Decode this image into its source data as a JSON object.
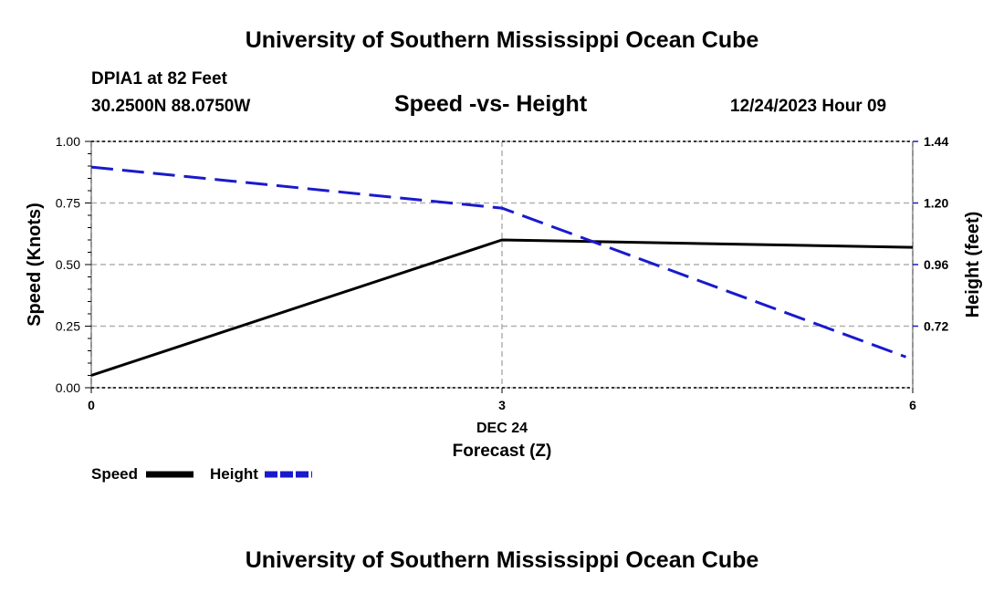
{
  "header": {
    "title": "University of Southern Mississippi Ocean Cube",
    "station": "DPIA1 at 82 Feet",
    "coords": "30.2500N  88.0750W",
    "subtitle": "Speed -vs- Height",
    "datetime": "12/24/2023 Hour 09"
  },
  "footer": {
    "title": "University of Southern Mississippi Ocean Cube"
  },
  "chart_data": {
    "type": "line",
    "title": "Speed -vs- Height",
    "x": [
      0,
      3,
      6
    ],
    "x_tick_labels": [
      "0",
      "3",
      "6"
    ],
    "x_date_label": "DEC 24",
    "xlabel": "Forecast (Z)",
    "xlim": [
      0,
      6
    ],
    "ylabel_left": "Speed (Knots)",
    "ylim_left": [
      0,
      1
    ],
    "y_ticks_left": [
      "0.00",
      "0.25",
      "0.50",
      "0.75",
      "1.00"
    ],
    "ylabel_right": "Height (feet)",
    "ylim_right": [
      0.48,
      1.44
    ],
    "y_ticks_right": [
      "0.72",
      "0.96",
      "1.20",
      "1.44"
    ],
    "grid": true,
    "series": [
      {
        "name": "Speed",
        "axis": "left",
        "color": "#000000",
        "dash": "solid",
        "x": [
          0,
          3,
          6
        ],
        "values": [
          0.05,
          0.6,
          0.57
        ]
      },
      {
        "name": "Height",
        "axis": "right",
        "color": "#1a1acc",
        "dash": "dashed",
        "x": [
          0,
          3,
          5.95
        ],
        "values": [
          1.34,
          1.18,
          0.6
        ]
      }
    ],
    "legend": [
      "Speed",
      "Height"
    ]
  }
}
